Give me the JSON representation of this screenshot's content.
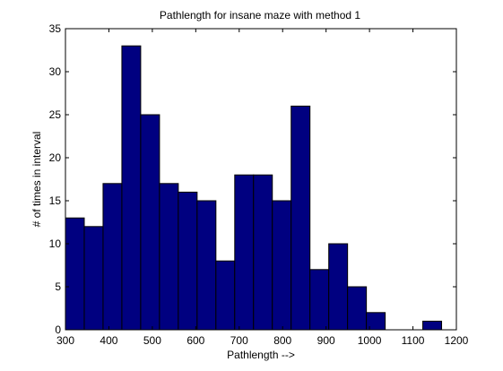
{
  "chart_data": {
    "type": "bar",
    "title": "Pathlength for insane maze with method 1",
    "xlabel": "Pathlength -->",
    "ylabel": "# of times in interval",
    "xlim": [
      300,
      1200
    ],
    "ylim": [
      0,
      35
    ],
    "xticks": [
      300,
      400,
      500,
      600,
      700,
      800,
      900,
      1000,
      1100,
      1200
    ],
    "yticks": [
      0,
      5,
      10,
      15,
      20,
      25,
      30,
      35
    ],
    "bin_edges": [
      300,
      343.3,
      386.6,
      429.9,
      473.2,
      516.5,
      559.8,
      603.1,
      646.4,
      689.7,
      733,
      776.3,
      819.6,
      862.9,
      906.2,
      949.5,
      992.8,
      1036.1,
      1079.4,
      1122.7,
      1166
    ],
    "values": [
      13,
      12,
      17,
      33,
      25,
      17,
      16,
      15,
      8,
      18,
      18,
      15,
      26,
      7,
      10,
      5,
      2,
      0,
      0,
      1
    ],
    "bar_color": "#000080",
    "edge_color": "#000000",
    "grid": false,
    "legend": "none"
  }
}
